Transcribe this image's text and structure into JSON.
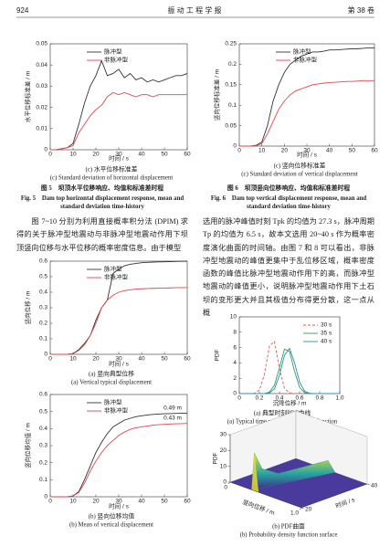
{
  "header": {
    "page": "924",
    "journal": "振 动 工 程 学 报",
    "volume": "第 38 卷"
  },
  "chart_data": [
    {
      "type": "line",
      "xlabel": "时间 / s",
      "ylabel": "水平位移标准差 / m",
      "caption": "(c) 水平位移标准差",
      "caption_en": "(c) Standard deviation of horizontal displacement",
      "x": [
        0,
        2.5,
        5,
        7.5,
        10,
        12.5,
        15,
        17.5,
        20,
        22.5,
        25,
        27.5,
        30,
        32.5,
        35,
        37.5,
        40,
        42.5,
        45,
        47.5,
        50,
        52.5,
        55,
        57.5,
        60
      ],
      "series": [
        {
          "name": "脉冲型",
          "color": "#333333",
          "values": [
            0,
            0,
            0.0005,
            0.001,
            0.003,
            0.012,
            0.022,
            0.03,
            0.035,
            0.042,
            0.035,
            0.036,
            0.038,
            0.034,
            0.036,
            0.033,
            0.034,
            0.032,
            0.033,
            0.032,
            0.033,
            0.034,
            0.035,
            0.035,
            0.036
          ]
        },
        {
          "name": "非脉冲型",
          "color": "#e0474c",
          "values": [
            0,
            0,
            0.0004,
            0.001,
            0.002,
            0.008,
            0.012,
            0.016,
            0.019,
            0.021,
            0.025,
            0.027,
            0.026,
            0.027,
            0.026,
            0.025,
            0.026,
            0.026,
            0.025,
            0.026,
            0.026,
            0.026,
            0.026,
            0.026,
            0.026
          ]
        }
      ],
      "xlim": [
        0,
        60
      ],
      "xticks": [
        0,
        10,
        20,
        30,
        40,
        50,
        60
      ],
      "ylim": [
        0,
        0.05
      ],
      "yticks": [
        0,
        0.01,
        0.02,
        0.03,
        0.04,
        0.05
      ],
      "legend": "upper left",
      "grid": false
    },
    {
      "type": "line",
      "xlabel": "时间 / s",
      "ylabel": "竖向位移标准差 / m",
      "caption": "(c) 竖向位移标准差",
      "caption_en": "(c) Standard deviation of vertical displacement",
      "x": [
        0,
        2.5,
        5,
        7.5,
        10,
        12.5,
        15,
        17.5,
        20,
        22.5,
        25,
        27.5,
        30,
        32.5,
        35,
        37.5,
        40,
        42.5,
        45,
        47.5,
        50,
        52.5,
        55,
        57.5,
        60
      ],
      "series": [
        {
          "name": "脉冲型",
          "color": "#333333",
          "values": [
            0,
            0,
            0,
            0.002,
            0.01,
            0.05,
            0.11,
            0.15,
            0.18,
            0.2,
            0.21,
            0.22,
            0.225,
            0.23,
            0.23,
            0.232,
            0.235,
            0.235,
            0.236,
            0.237,
            0.238,
            0.238,
            0.239,
            0.24,
            0.24
          ]
        },
        {
          "name": "非脉冲型",
          "color": "#e0474c",
          "values": [
            0,
            0,
            0,
            0.001,
            0.006,
            0.03,
            0.06,
            0.09,
            0.11,
            0.125,
            0.135,
            0.14,
            0.145,
            0.15,
            0.152,
            0.154,
            0.155,
            0.156,
            0.157,
            0.158,
            0.158,
            0.159,
            0.16,
            0.16,
            0.16
          ]
        }
      ],
      "xlim": [
        0,
        60
      ],
      "xticks": [
        0,
        10,
        20,
        30,
        40,
        50,
        60
      ],
      "ylim": [
        0,
        0.25
      ],
      "yticks": [
        0,
        0.05,
        0.1,
        0.15,
        0.2,
        0.25
      ],
      "legend": "upper left",
      "grid": false
    },
    {
      "type": "line",
      "xlabel": "时间 / s",
      "ylabel": "竖向位移 / m",
      "caption": "(a) 竖向典型位移",
      "caption_en": "(a) Vertical typical displacement",
      "x": [
        0,
        2.5,
        5,
        7.5,
        10,
        12.5,
        15,
        17.5,
        20,
        22.5,
        25,
        27.5,
        30,
        32.5,
        35,
        37.5,
        40,
        42.5,
        45,
        47.5,
        50,
        52.5,
        55,
        57.5,
        60
      ],
      "series": [
        {
          "name": "脉冲型",
          "color": "#333333",
          "values": [
            0,
            0,
            0,
            0,
            0.005,
            0.03,
            0.07,
            0.12,
            0.22,
            0.3,
            0.35,
            0.52,
            0.55,
            0.57,
            0.58,
            0.585,
            0.59,
            0.592,
            0.594,
            0.595,
            0.596,
            0.597,
            0.598,
            0.599,
            0.6
          ]
        },
        {
          "name": "非脉冲型",
          "color": "#e0474c",
          "values": [
            0,
            0,
            0,
            0,
            0.004,
            0.025,
            0.06,
            0.12,
            0.2,
            0.3,
            0.35,
            0.38,
            0.4,
            0.41,
            0.415,
            0.42,
            0.422,
            0.424,
            0.425,
            0.426,
            0.427,
            0.428,
            0.429,
            0.43,
            0.43
          ]
        }
      ],
      "xlim": [
        0,
        60
      ],
      "xticks": [
        0,
        10,
        20,
        30,
        40,
        50,
        60
      ],
      "ylim": [
        0,
        0.6
      ],
      "yticks": [
        0,
        0.1,
        0.2,
        0.3,
        0.4,
        0.5,
        0.6
      ],
      "legend": "upper left",
      "grid": false
    },
    {
      "type": "line",
      "xlabel": "时间 / s",
      "ylabel": "竖向位移均值 / m",
      "caption": "(b) 竖向位移均值",
      "caption_en": "(b) Mean of vertical displacement",
      "x": [
        0,
        2.5,
        5,
        7.5,
        10,
        12.5,
        15,
        17.5,
        20,
        22.5,
        25,
        27.5,
        30,
        32.5,
        35,
        37.5,
        40,
        42.5,
        45,
        47.5,
        50,
        52.5,
        55,
        57.5,
        60
      ],
      "series": [
        {
          "name": "脉冲型",
          "color": "#333333",
          "values": [
            0,
            0,
            0,
            0,
            0.005,
            0.03,
            0.1,
            0.18,
            0.26,
            0.32,
            0.37,
            0.41,
            0.43,
            0.45,
            0.46,
            0.47,
            0.475,
            0.48,
            0.483,
            0.485,
            0.487,
            0.488,
            0.489,
            0.49,
            0.49
          ]
        },
        {
          "name": "非脉冲型",
          "color": "#e0474c",
          "values": [
            0,
            0,
            0,
            0,
            0.004,
            0.025,
            0.08,
            0.15,
            0.21,
            0.26,
            0.3,
            0.33,
            0.36,
            0.38,
            0.395,
            0.405,
            0.41,
            0.415,
            0.42,
            0.423,
            0.425,
            0.427,
            0.428,
            0.429,
            0.43
          ]
        }
      ],
      "annotations": [
        "0.49 m",
        "0.43 m"
      ],
      "xlim": [
        0,
        60
      ],
      "xticks": [
        0,
        10,
        20,
        30,
        40,
        50,
        60
      ],
      "ylim": [
        0,
        0.6
      ],
      "yticks": [
        0,
        0.1,
        0.2,
        0.3,
        0.4,
        0.5,
        0.6
      ],
      "legend": "upper left",
      "grid": false
    },
    {
      "type": "line",
      "xlabel": "沉降位移 / m",
      "ylabel": "PDF",
      "caption": "(a) 典型时刻PDF曲线",
      "caption_en": "(a) Typical time probability density function",
      "x": [
        0,
        0.05,
        0.1,
        0.15,
        0.2,
        0.25,
        0.3,
        0.35,
        0.4,
        0.45,
        0.5,
        0.55,
        0.6,
        0.65,
        0.7,
        0.75,
        0.8,
        0.85,
        0.9,
        0.95,
        1
      ],
      "series": [
        {
          "name": "30 s",
          "color": "#e05a5a",
          "style": "dashed",
          "values": [
            0,
            0,
            0,
            0.03,
            0.44,
            2.5,
            6.2,
            6.8,
            3.2,
            0.67,
            0.06,
            0,
            0,
            0,
            0,
            0,
            0,
            0,
            0,
            0,
            0
          ]
        },
        {
          "name": "35 s",
          "color": "#3a9a5a",
          "values": [
            0,
            0,
            0,
            0,
            0,
            0,
            0.2,
            1.1,
            3.4,
            5.8,
            5.5,
            2.9,
            0.8,
            0.13,
            0.01,
            0,
            0,
            0,
            0,
            0,
            0
          ]
        },
        {
          "name": "40 s",
          "color": "#2a8fb0",
          "values": [
            0,
            0,
            0,
            0,
            0,
            0,
            0.1,
            0.6,
            2.4,
            5,
            5.9,
            4,
            1.5,
            0.3,
            0.04,
            0,
            0,
            0,
            0,
            0,
            0
          ]
        }
      ],
      "xlim": [
        0,
        1
      ],
      "xticks": [
        0,
        0.2,
        0.4,
        0.6,
        0.8,
        {
          "value": 1,
          "label": "1.0"
        }
      ],
      "ylim": [
        0,
        10
      ],
      "yticks": [
        0,
        2,
        4,
        6,
        8,
        10
      ],
      "legend": "upper right",
      "grid": false
    },
    {
      "type": "surface",
      "xlabel": "竖向位移 / m",
      "ylabel": "时间 / s",
      "zlabel": "PDF",
      "caption": "(b) PDF曲面",
      "caption_en": "(b) Probability density function surface",
      "xlim": [
        0,
        1
      ],
      "xticks": [
        0,
        {
          "value": 1,
          "label": "1.0"
        }
      ],
      "ylim": [
        20,
        40
      ],
      "yticks": [
        20,
        40
      ],
      "zlim": [
        0,
        30
      ],
      "zticks": [
        0,
        10,
        20,
        30
      ]
    }
  ],
  "figure_captions": [
    {
      "cn": "图 5　坝顶水平位移响应、均值和标准差时程",
      "en": "Fig. 5　Dam top horizontal displacement response, mean and standard deviation time-history"
    },
    {
      "cn": "图 6　坝顶竖向位移响应、均值和标准差时程",
      "en": "Fig. 6　Dam top vertical displacement response, mean and standard deviation time-history"
    }
  ],
  "paragraphs": [
    "图 7~10 分别为利用直接概率积分法 (DPIM) 求得的关于脉冲型地震动与非脉冲型地震动作用下坝顶竖向位移与水平位移的概率密度信息。由于模型",
    "选用的脉冲峰值时刻 Tpk 的均值为 27.3 s，脉冲周期 Tp 的均值为 6.5 s，故本文选用 20~40 s 作为概率密度演化曲面的时间轴。由图 7 和 8 可以看出，非脉冲型地震动的峰值更集中于乱位移区域，概率密度函数的峰值比脉冲型地震动作用下的高，而脉冲型地震动的峰值更小，说明脉冲型地震动作用下土石坝的变形更大并且其极值分布得更分散，这一点从概"
  ]
}
